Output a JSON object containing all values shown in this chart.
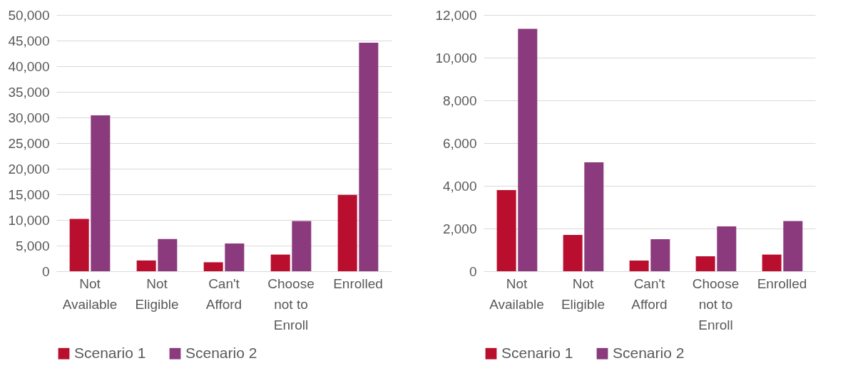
{
  "chart_data": [
    {
      "type": "bar",
      "categories": [
        "Not Available",
        "Not Eligible",
        "Can't Afford",
        "Choose not to Enroll",
        "Enrolled"
      ],
      "ylim": [
        0,
        50000
      ],
      "yticks": [
        {
          "value": 0,
          "label": "0"
        },
        {
          "value": 5000,
          "label": "5,000"
        },
        {
          "value": 10000,
          "label": "10,000"
        },
        {
          "value": 15000,
          "label": "15,000"
        },
        {
          "value": 20000,
          "label": "20,000"
        },
        {
          "value": 25000,
          "label": "25,000"
        },
        {
          "value": 30000,
          "label": "30,000"
        },
        {
          "value": 35000,
          "label": "35,000"
        },
        {
          "value": 40000,
          "label": "40,000"
        },
        {
          "value": 45000,
          "label": "45,000"
        },
        {
          "value": 50000,
          "label": "50,000"
        }
      ],
      "grid": "y",
      "legend": "bottom",
      "series": [
        {
          "name": "Scenario 1",
          "color": "#b90e2e",
          "values": [
            10200,
            2100,
            1750,
            3250,
            14900
          ]
        },
        {
          "name": "Scenario 2",
          "color": "#8a3a7d",
          "values": [
            30400,
            6300,
            5400,
            9800,
            44600
          ]
        }
      ]
    },
    {
      "type": "bar",
      "categories": [
        "Not Available",
        "Not Eligible",
        "Can't Afford",
        "Choose not to Enroll",
        "Enrolled"
      ],
      "ylim": [
        0,
        12000
      ],
      "yticks": [
        {
          "value": 0,
          "label": "0"
        },
        {
          "value": 2000,
          "label": "2,000"
        },
        {
          "value": 4000,
          "label": "4,000"
        },
        {
          "value": 6000,
          "label": "6,000"
        },
        {
          "value": 8000,
          "label": "8,000"
        },
        {
          "value": 10000,
          "label": "10,000"
        },
        {
          "value": 12000,
          "label": "12,000"
        }
      ],
      "grid": "y",
      "legend": "bottom",
      "series": [
        {
          "name": "Scenario 1",
          "color": "#b90e2e",
          "values": [
            3800,
            1700,
            500,
            700,
            780
          ]
        },
        {
          "name": "Scenario 2",
          "color": "#8a3a7d",
          "values": [
            11350,
            5100,
            1500,
            2100,
            2350
          ]
        }
      ]
    }
  ]
}
